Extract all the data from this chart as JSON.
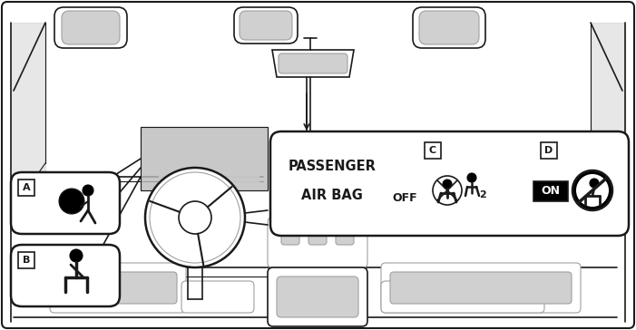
{
  "bg_color": "#ffffff",
  "fig_width": 7.01,
  "fig_height": 3.64,
  "dpi": 100,
  "label_A": "A",
  "label_B": "B",
  "label_C": "C",
  "label_D": "D",
  "text_passenger": "PASSENGER",
  "text_airbag": "AIR BAG",
  "text_off": "OFF",
  "text_on": "ON",
  "text_2": "2",
  "line_color": "#1a1a1a",
  "gray_light": "#d0d0d0",
  "gray_mid": "#a0a0a0",
  "gray_dark": "#555555",
  "gray_fill": "#e8e8e8",
  "gray_seat": "#bbbbbb"
}
